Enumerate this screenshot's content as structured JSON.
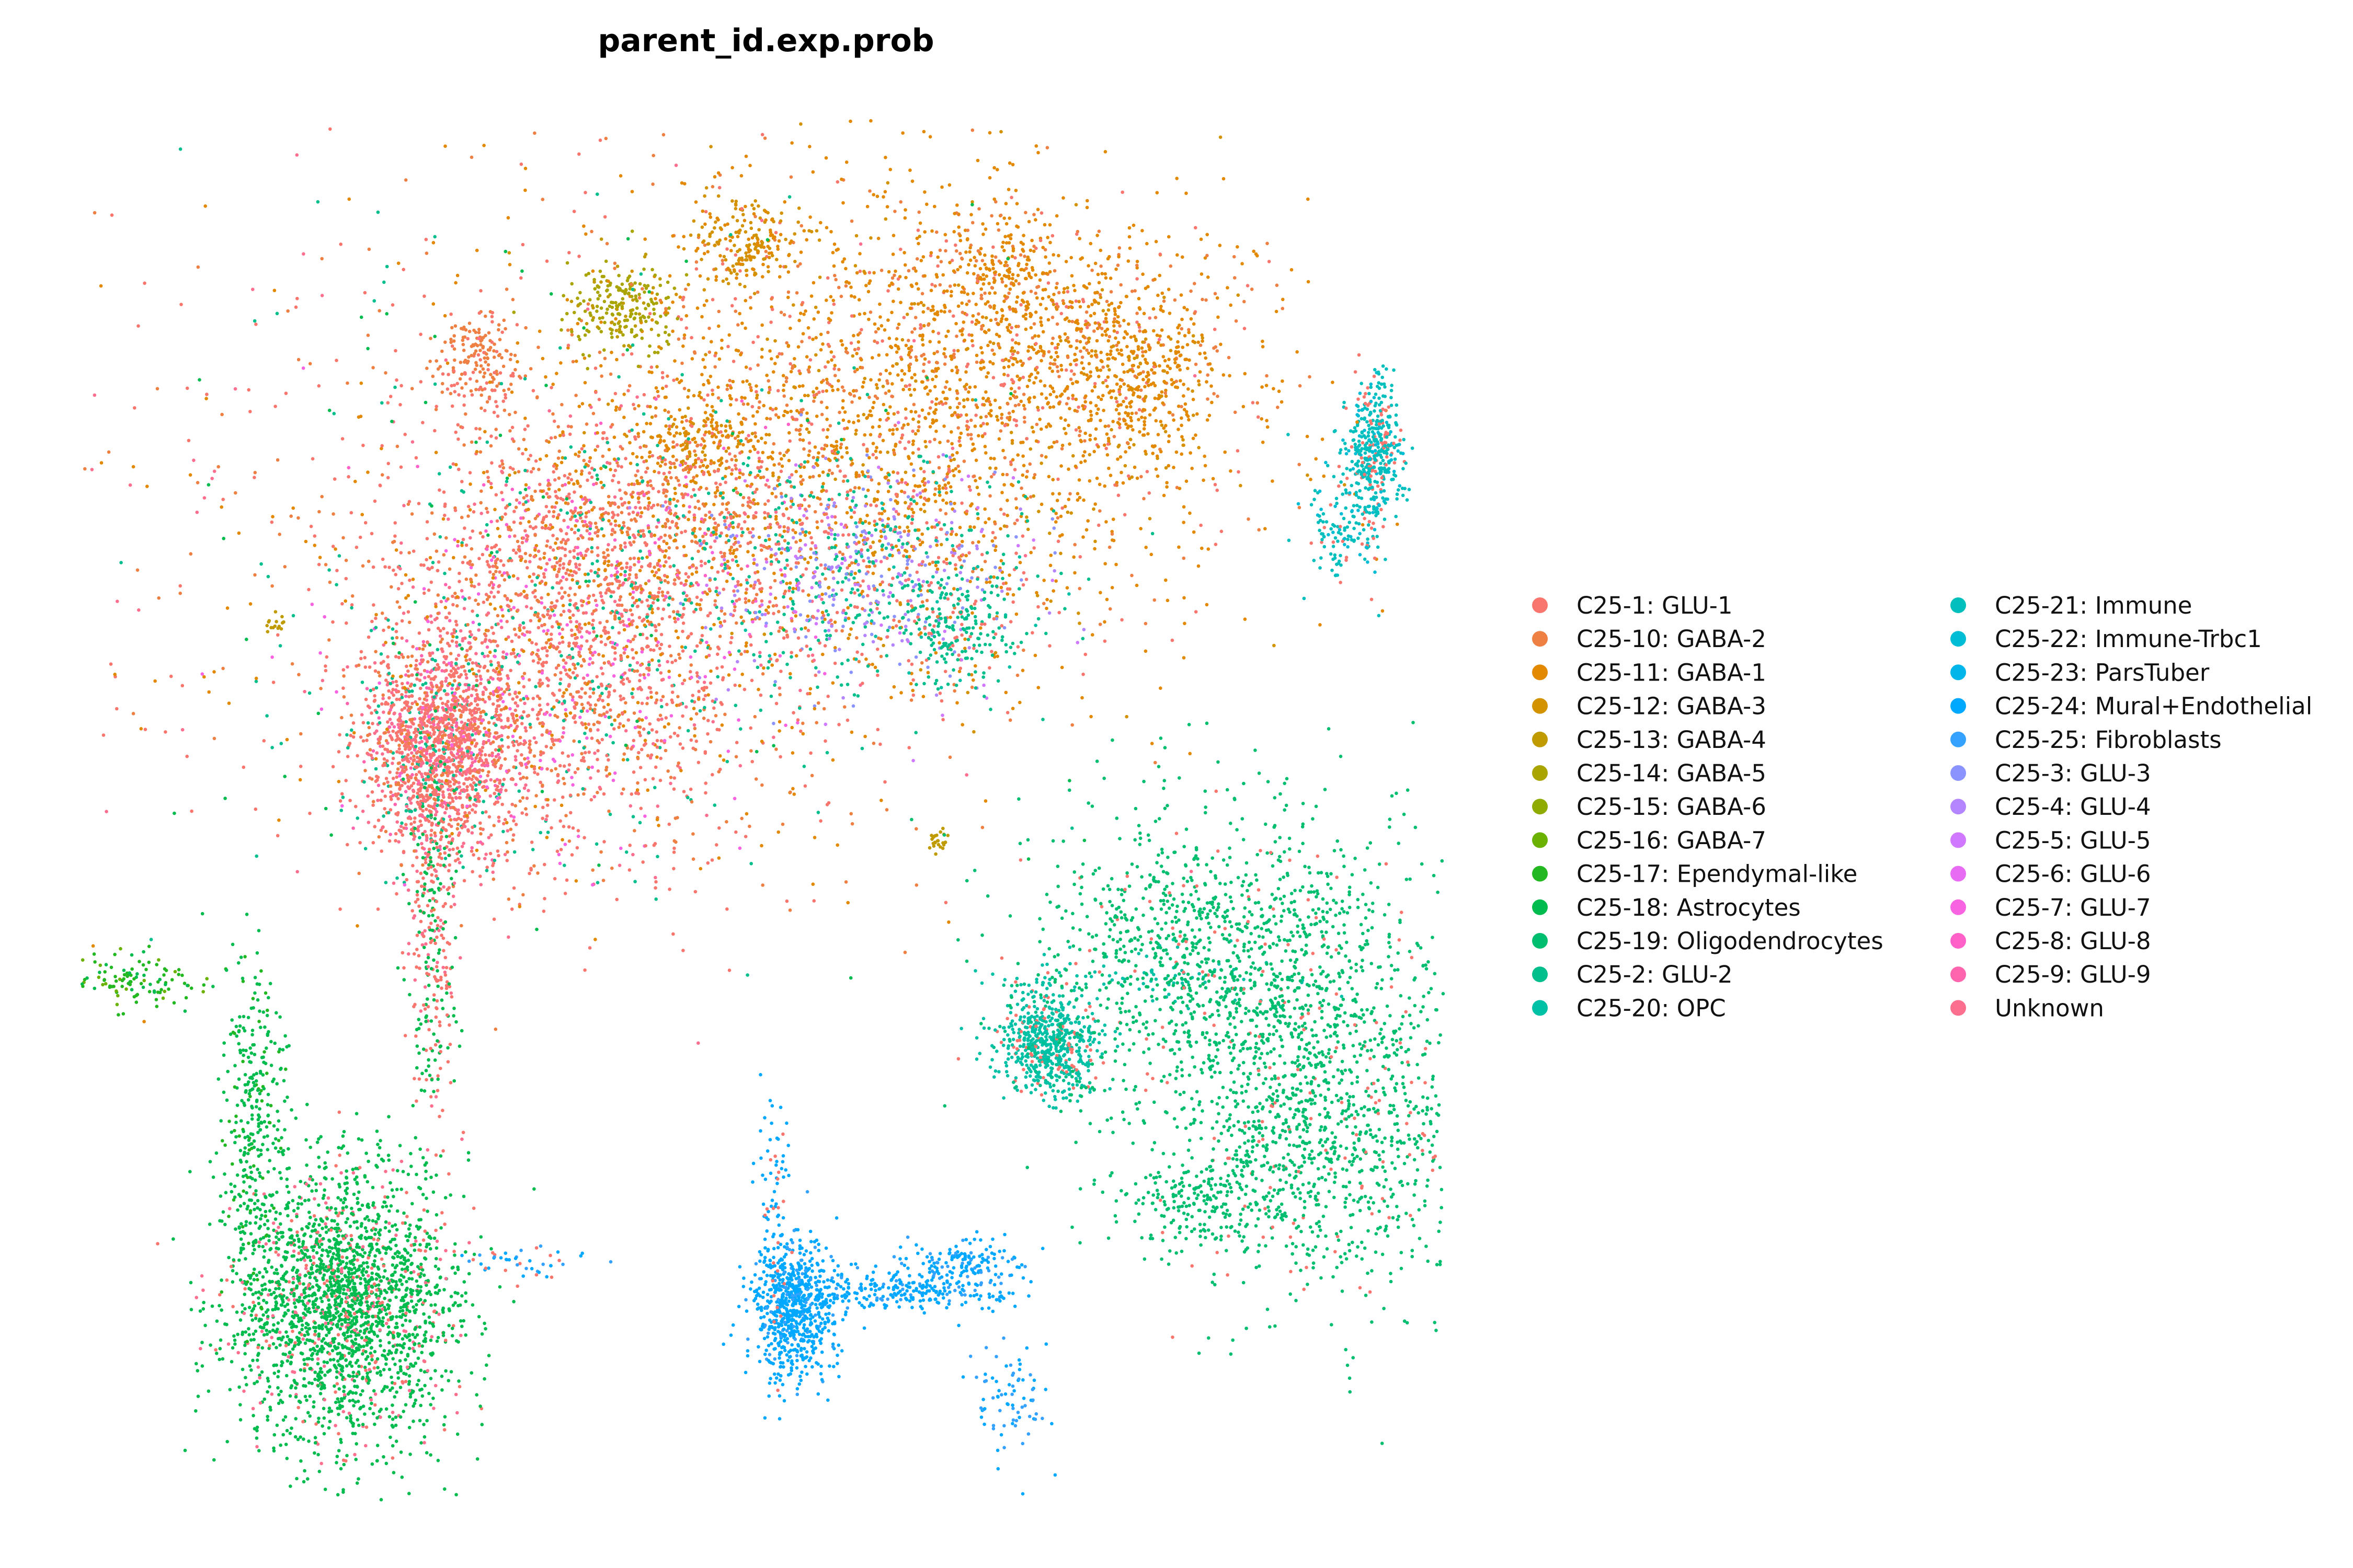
{
  "chart_data": {
    "type": "scatter",
    "title": "parent_id.exp.prob",
    "xlabel": "",
    "ylabel": "",
    "axes_visible": false,
    "grid": false,
    "xlim": [
      0,
      100
    ],
    "ylim": [
      0,
      100
    ],
    "legend_placement": "right",
    "legend_columns": 2,
    "series": [
      {
        "name": "C25-1: GLU-1",
        "color": "#F8766D"
      },
      {
        "name": "C25-10: GABA-2",
        "color": "#EE8043"
      },
      {
        "name": "C25-11: GABA-1",
        "color": "#E38900"
      },
      {
        "name": "C25-12: GABA-3",
        "color": "#D39200"
      },
      {
        "name": "C25-13: GABA-4",
        "color": "#C09B00"
      },
      {
        "name": "C25-14: GABA-5",
        "color": "#A9A400"
      },
      {
        "name": "C25-15: GABA-6",
        "color": "#8FAA00"
      },
      {
        "name": "C25-16: GABA-7",
        "color": "#6BB100"
      },
      {
        "name": "C25-17: Ependymal-like",
        "color": "#23B822"
      },
      {
        "name": "C25-18: Astrocytes",
        "color": "#00BB4E"
      },
      {
        "name": "C25-19: Oligodendrocytes",
        "color": "#00BE70"
      },
      {
        "name": "C25-2: GLU-2",
        "color": "#00BF8C"
      },
      {
        "name": "C25-20: OPC",
        "color": "#00C0A6"
      },
      {
        "name": "C25-21: Immune",
        "color": "#00BFBD"
      },
      {
        "name": "C25-22: Immune-Trbc1",
        "color": "#00BCD5"
      },
      {
        "name": "C25-23: ParsTuber",
        "color": "#00B5EA"
      },
      {
        "name": "C25-24: Mural+Endothelial",
        "color": "#00A9FF"
      },
      {
        "name": "C25-25: Fibroblasts",
        "color": "#35A2FF"
      },
      {
        "name": "C25-3: GLU-3",
        "color": "#8B93FF"
      },
      {
        "name": "C25-4: GLU-4",
        "color": "#B385FF"
      },
      {
        "name": "C25-5: GLU-5",
        "color": "#D078FF"
      },
      {
        "name": "C25-6: GLU-6",
        "color": "#E76BF3"
      },
      {
        "name": "C25-7: GLU-7",
        "color": "#F763E0"
      },
      {
        "name": "C25-8: GLU-8",
        "color": "#FF61C9"
      },
      {
        "name": "C25-9: GLU-9",
        "color": "#FF65AE"
      },
      {
        "name": "Unknown",
        "color": "#FD6F8F"
      }
    ],
    "clusters": [
      {
        "x": 59.4,
        "y": 78.2,
        "sx": 12.0,
        "sy": 9.0,
        "n": 2200,
        "mix": [
          [
            2,
            6
          ],
          [
            1,
            2
          ],
          [
            0,
            1
          ],
          [
            3,
            1
          ]
        ]
      },
      {
        "x": 72.0,
        "y": 84.0,
        "sx": 6.5,
        "sy": 4.5,
        "n": 650,
        "mix": [
          [
            2,
            5
          ],
          [
            1,
            2
          ],
          [
            0,
            1
          ]
        ]
      },
      {
        "x": 77.8,
        "y": 81.0,
        "sx": 2.5,
        "sy": 3.0,
        "n": 250,
        "mix": [
          [
            2,
            5
          ],
          [
            3,
            1
          ]
        ]
      },
      {
        "x": 68.0,
        "y": 89.5,
        "sx": 2.0,
        "sy": 2.0,
        "n": 140,
        "mix": [
          [
            2,
            4
          ],
          [
            1,
            1
          ]
        ]
      },
      {
        "x": 48.8,
        "y": 91.0,
        "sx": 2.0,
        "sy": 1.8,
        "n": 180,
        "mix": [
          [
            3,
            4
          ],
          [
            2,
            2
          ]
        ]
      },
      {
        "x": 39.8,
        "y": 86.4,
        "sx": 2.0,
        "sy": 1.6,
        "n": 220,
        "mix": [
          [
            5,
            6
          ],
          [
            4,
            1
          ]
        ]
      },
      {
        "x": 29.3,
        "y": 82.4,
        "sx": 1.6,
        "sy": 2.0,
        "n": 180,
        "mix": [
          [
            1,
            5
          ],
          [
            0,
            2
          ]
        ]
      },
      {
        "x": 45.2,
        "y": 76.6,
        "sx": 2.0,
        "sy": 1.4,
        "n": 140,
        "mix": [
          [
            2,
            4
          ],
          [
            3,
            2
          ]
        ]
      },
      {
        "x": 26.4,
        "y": 54.5,
        "sx": 2.6,
        "sy": 4.0,
        "n": 1500,
        "mix": [
          [
            0,
            6
          ],
          [
            25,
            2
          ],
          [
            24,
            1
          ],
          [
            11,
            1
          ],
          [
            1,
            1
          ]
        ]
      },
      {
        "x": 36.0,
        "y": 60.0,
        "sx": 8.0,
        "sy": 6.5,
        "n": 1900,
        "mix": [
          [
            0,
            5
          ],
          [
            1,
            2
          ],
          [
            25,
            1
          ],
          [
            11,
            1
          ],
          [
            2,
            1
          ],
          [
            22,
            1
          ]
        ]
      },
      {
        "x": 40.0,
        "y": 71.0,
        "sx": 7.0,
        "sy": 4.0,
        "n": 900,
        "mix": [
          [
            0,
            4
          ],
          [
            1,
            3
          ],
          [
            11,
            1
          ],
          [
            2,
            1
          ],
          [
            23,
            1
          ]
        ]
      },
      {
        "x": 58.0,
        "y": 67.5,
        "sx": 6.0,
        "sy": 4.0,
        "n": 800,
        "mix": [
          [
            11,
            4
          ],
          [
            18,
            2
          ],
          [
            19,
            2
          ],
          [
            0,
            2
          ],
          [
            20,
            1
          ],
          [
            12,
            1
          ]
        ]
      },
      {
        "x": 64.5,
        "y": 63.5,
        "sx": 2.2,
        "sy": 2.2,
        "n": 180,
        "mix": [
          [
            11,
            4
          ],
          [
            0,
            1
          ]
        ]
      },
      {
        "x": 63.0,
        "y": 48.0,
        "sx": 0.4,
        "sy": 0.6,
        "n": 25,
        "mix": [
          [
            4,
            1
          ]
        ]
      },
      {
        "x": 14.5,
        "y": 63.5,
        "sx": 0.5,
        "sy": 0.4,
        "n": 15,
        "mix": [
          [
            4,
            1
          ]
        ]
      },
      {
        "x": 26.0,
        "y": 41.0,
        "sx": 0.9,
        "sy": 7.0,
        "n": 320,
        "mix": [
          [
            0,
            3
          ],
          [
            9,
            3
          ],
          [
            25,
            1
          ]
        ]
      },
      {
        "x": 19.5,
        "y": 14.5,
        "sx": 4.2,
        "sy": 5.0,
        "n": 2300,
        "mix": [
          [
            9,
            10
          ],
          [
            0,
            1
          ],
          [
            25,
            1
          ]
        ]
      },
      {
        "x": 13.0,
        "y": 28.0,
        "sx": 1.2,
        "sy": 6.0,
        "n": 320,
        "mix": [
          [
            9,
            5
          ],
          [
            8,
            1
          ]
        ]
      },
      {
        "x": 4.5,
        "y": 38.0,
        "sx": 2.5,
        "sy": 1.0,
        "n": 110,
        "mix": [
          [
            8,
            3
          ],
          [
            9,
            1
          ],
          [
            7,
            1
          ]
        ]
      },
      {
        "x": 95.0,
        "y": 76.0,
        "sx": 1.0,
        "sy": 2.5,
        "n": 450,
        "mix": [
          [
            13,
            4
          ],
          [
            14,
            1
          ],
          [
            0,
            1
          ]
        ]
      },
      {
        "x": 92.5,
        "y": 70.5,
        "sx": 1.5,
        "sy": 2.0,
        "n": 120,
        "mix": [
          [
            13,
            3
          ],
          [
            0,
            1
          ],
          [
            14,
            1
          ]
        ]
      },
      {
        "x": 71.0,
        "y": 33.5,
        "sx": 1.8,
        "sy": 2.0,
        "n": 650,
        "mix": [
          [
            12,
            6
          ],
          [
            11,
            1
          ],
          [
            0,
            1
          ]
        ]
      },
      {
        "x": 80.0,
        "y": 38.0,
        "sx": 5.0,
        "sy": 1.0,
        "n": 100,
        "mix": [
          [
            12,
            3
          ],
          [
            10,
            1
          ]
        ]
      },
      {
        "x": 84.0,
        "y": 40.0,
        "sx": 7.0,
        "sy": 5.5,
        "n": 1100,
        "mix": [
          [
            10,
            12
          ],
          [
            0,
            1
          ]
        ]
      },
      {
        "x": 90.5,
        "y": 28.0,
        "sx": 6.0,
        "sy": 6.5,
        "n": 1300,
        "mix": [
          [
            10,
            12
          ],
          [
            0,
            1
          ]
        ]
      },
      {
        "x": 82.5,
        "y": 22.0,
        "sx": 3.5,
        "sy": 1.5,
        "n": 180,
        "mix": [
          [
            10,
            10
          ]
        ]
      },
      {
        "x": 52.5,
        "y": 14.0,
        "sx": 1.5,
        "sy": 2.5,
        "n": 700,
        "mix": [
          [
            16,
            8
          ],
          [
            17,
            1
          ]
        ]
      },
      {
        "x": 60.0,
        "y": 15.5,
        "sx": 4.5,
        "sy": 0.7,
        "n": 260,
        "mix": [
          [
            16,
            6
          ],
          [
            17,
            1
          ]
        ]
      },
      {
        "x": 65.0,
        "y": 17.5,
        "sx": 2.0,
        "sy": 1.0,
        "n": 150,
        "mix": [
          [
            16,
            5
          ],
          [
            17,
            2
          ]
        ]
      },
      {
        "x": 68.5,
        "y": 8.0,
        "sx": 1.5,
        "sy": 2.2,
        "n": 80,
        "mix": [
          [
            17,
            3
          ],
          [
            16,
            2
          ]
        ]
      },
      {
        "x": 51.0,
        "y": 20.0,
        "sx": 0.6,
        "sy": 5.0,
        "n": 100,
        "mix": [
          [
            16,
            3
          ],
          [
            0,
            1
          ]
        ]
      },
      {
        "x": 32.0,
        "y": 17.5,
        "sx": 2.0,
        "sy": 0.7,
        "n": 45,
        "mix": [
          [
            16,
            2
          ],
          [
            17,
            1
          ],
          [
            0,
            1
          ]
        ]
      },
      {
        "x": 35.0,
        "y": 70.0,
        "sx": 20.0,
        "sy": 14.0,
        "n": 900,
        "mix": [
          [
            0,
            4
          ],
          [
            1,
            2
          ],
          [
            2,
            2
          ],
          [
            11,
            1
          ],
          [
            9,
            1
          ],
          [
            25,
            1
          ]
        ]
      }
    ]
  }
}
